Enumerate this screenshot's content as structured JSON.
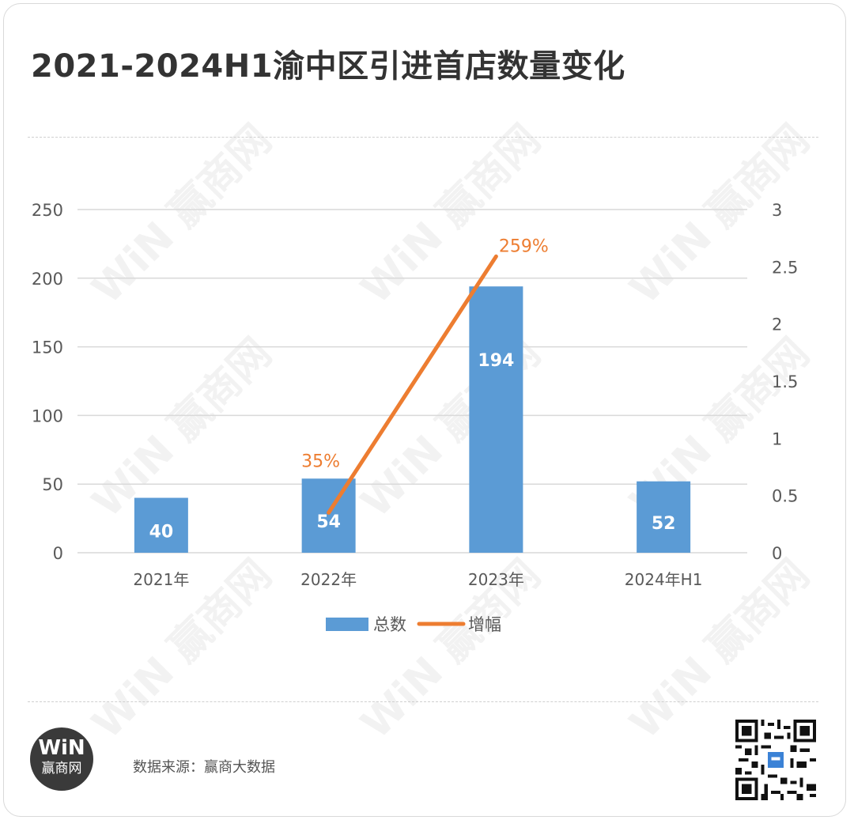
{
  "title": "2021-2024H1渝中区引进首店数量变化",
  "source": "数据来源：赢商大数据",
  "logo": {
    "mark": "WiN",
    "name": "赢商网"
  },
  "watermark_text": "WiN 赢商网",
  "colors": {
    "bar": "#5b9bd5",
    "line": "#ed7d31",
    "grid": "#d9d9d9",
    "axis_text": "#595959"
  },
  "chart_data": {
    "type": "bar",
    "categories": [
      "2021年",
      "2022年",
      "2023年",
      "2024年H1"
    ],
    "series": [
      {
        "name": "总数",
        "type": "bar",
        "axis": "left",
        "values": [
          40,
          54,
          194,
          52
        ],
        "labels": [
          "40",
          "54",
          "194",
          "52"
        ]
      },
      {
        "name": "增幅",
        "type": "line",
        "axis": "right",
        "values": [
          null,
          0.35,
          2.59,
          null
        ],
        "labels": [
          "",
          "35%",
          "259%",
          ""
        ]
      }
    ],
    "y_left": {
      "ylim": [
        0,
        250
      ],
      "ticks": [
        "0",
        "50",
        "100",
        "150",
        "200",
        "250"
      ]
    },
    "y_right": {
      "ylim": [
        0,
        3
      ],
      "ticks": [
        "0",
        "0.5",
        "1",
        "1.5",
        "2",
        "2.5",
        "3"
      ]
    },
    "grid": true,
    "legend": "bottom-center"
  }
}
